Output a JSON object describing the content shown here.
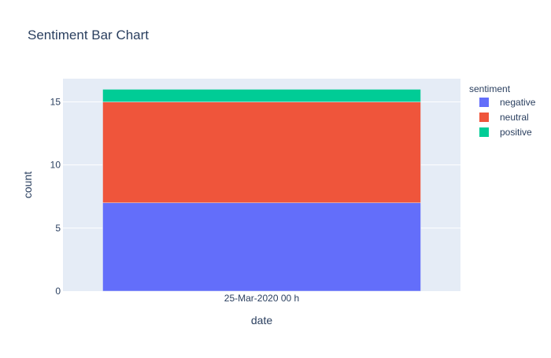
{
  "chart_data": {
    "type": "bar",
    "stacked": true,
    "title": "Sentiment Bar Chart",
    "xlabel": "date",
    "ylabel": "count",
    "categories": [
      "25-Mar-2020 00 h"
    ],
    "ylim": [
      0,
      16.842
    ],
    "yticks": [
      0,
      5,
      10,
      15
    ],
    "grid": true,
    "legend": {
      "title": "sentiment",
      "placement": "top-right"
    },
    "series": [
      {
        "name": "negative",
        "values": [
          7
        ],
        "color": "#636efa"
      },
      {
        "name": "neutral",
        "values": [
          8
        ],
        "color": "#ef553b"
      },
      {
        "name": "positive",
        "values": [
          1
        ],
        "color": "#00cc96"
      }
    ]
  },
  "colors": {
    "plot_background": "#e5ecf6",
    "gridline": "#ffffff",
    "text": "#2a3f5f"
  }
}
